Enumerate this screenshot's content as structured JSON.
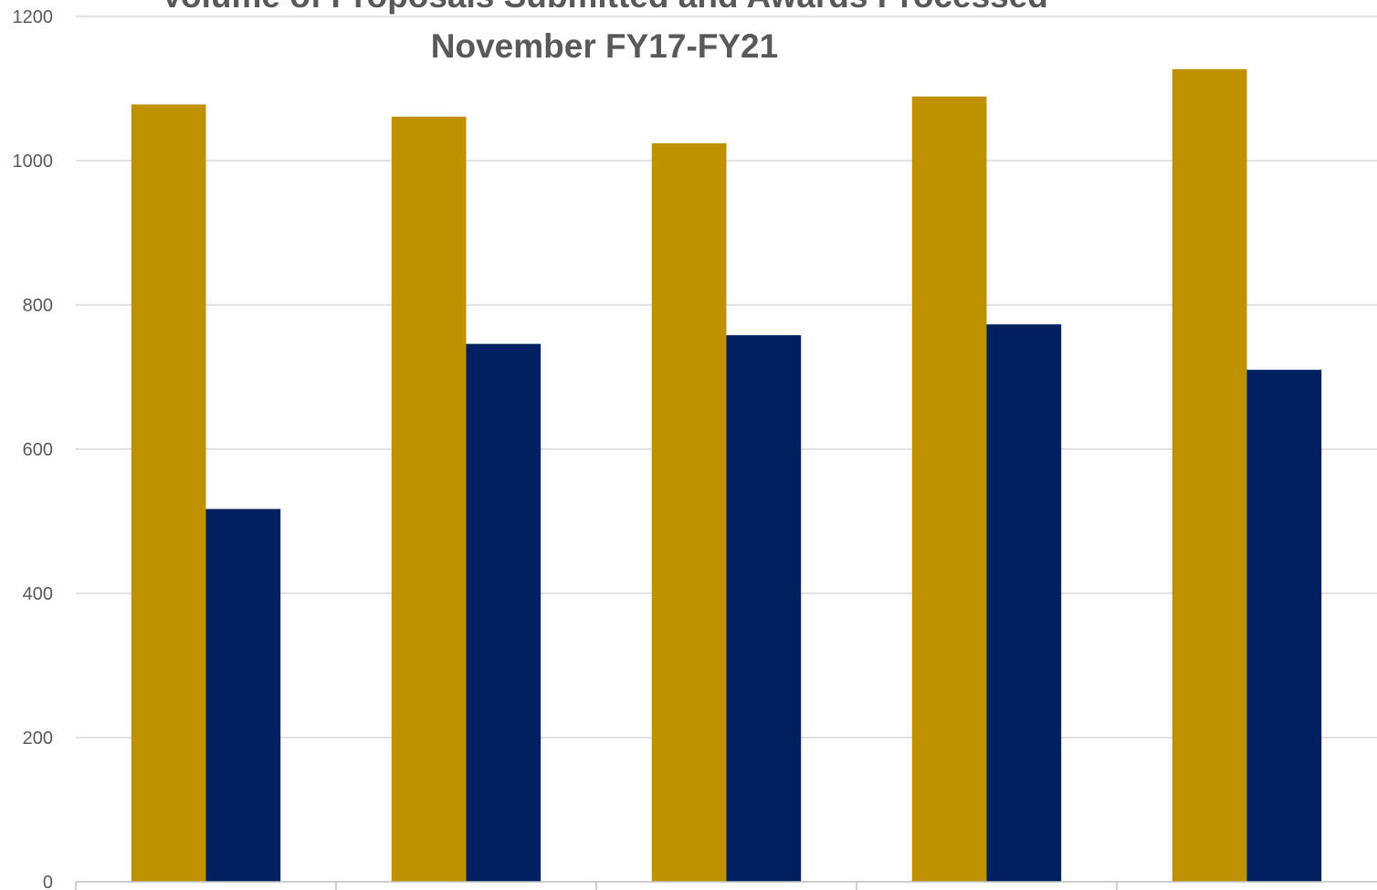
{
  "chart_data": {
    "type": "bar",
    "title_lines": [
      "Volume of Proposals Submitted and Awards Processed",
      "November FY17-FY21"
    ],
    "categories": [
      "",
      "",
      "",
      "",
      ""
    ],
    "series": [
      {
        "values": [
          1078,
          1061,
          1024,
          1089,
          1127
        ],
        "color": "#bf9000"
      },
      {
        "values": [
          517,
          746,
          758,
          773,
          710
        ],
        "color": "#002060"
      }
    ],
    "ylim": [
      0,
      1200
    ],
    "yticks": [
      0,
      200,
      400,
      600,
      800,
      1000,
      1200
    ],
    "grid": true,
    "xlabel": "",
    "ylabel": ""
  }
}
